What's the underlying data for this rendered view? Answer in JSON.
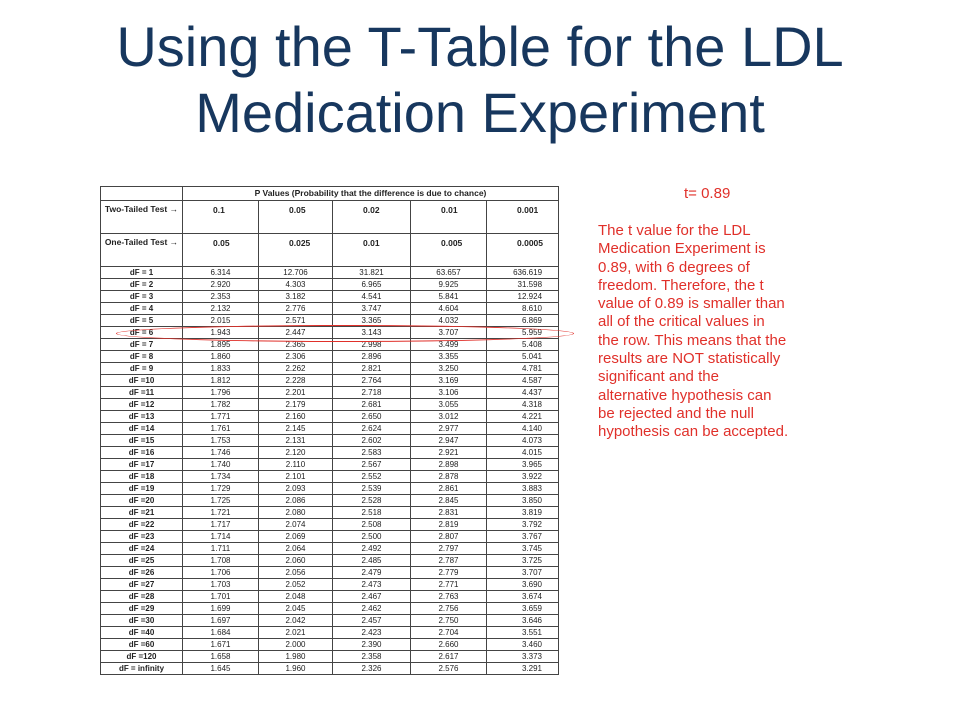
{
  "title": "Using the T-Table for the LDL Medication Experiment",
  "t_value_label": "t= 0.89",
  "explanation": "The t value for the LDL\nMedication Experiment is\n0.89, with 6 degrees of\nfreedom. Therefore, the t\nvalue of 0.89 is smaller than\nall of the critical values in\nthe row. This means that the\nresults are NOT statistically\nsignificant and the\nalternative hypothesis can\nbe rejected and the null\nhypothesis can be accepted.",
  "highlight_color": "#e0302a",
  "title_color": "#17375e",
  "table": {
    "p_values_header": "P Values (Probability that the difference is due to chance)",
    "two_tailed_label": "Two-Tailed Test →",
    "one_tailed_label": "One-Tailed Test →",
    "two_tailed": [
      "0.1",
      "0.05",
      "0.02",
      "0.01",
      "0.001"
    ],
    "one_tailed": [
      "0.05",
      "0.025",
      "0.01",
      "0.005",
      "0.0005"
    ],
    "highlighted_row": "dF = 6",
    "rows": [
      {
        "df": "dF = 1",
        "values": [
          "6.314",
          "12.706",
          "31.821",
          "63.657",
          "636.619"
        ]
      },
      {
        "df": "dF = 2",
        "values": [
          "2.920",
          "4.303",
          "6.965",
          "9.925",
          "31.598"
        ]
      },
      {
        "df": "dF = 3",
        "values": [
          "2.353",
          "3.182",
          "4.541",
          "5.841",
          "12.924"
        ]
      },
      {
        "df": "dF = 4",
        "values": [
          "2.132",
          "2.776",
          "3.747",
          "4.604",
          "8.610"
        ]
      },
      {
        "df": "dF = 5",
        "values": [
          "2.015",
          "2.571",
          "3.365",
          "4.032",
          "6.869"
        ]
      },
      {
        "df": "dF = 6",
        "values": [
          "1.943",
          "2.447",
          "3.143",
          "3.707",
          "5.959"
        ]
      },
      {
        "df": "dF = 7",
        "values": [
          "1.895",
          "2.365",
          "2.998",
          "3.499",
          "5.408"
        ]
      },
      {
        "df": "dF = 8",
        "values": [
          "1.860",
          "2.306",
          "2.896",
          "3.355",
          "5.041"
        ]
      },
      {
        "df": "dF = 9",
        "values": [
          "1.833",
          "2.262",
          "2.821",
          "3.250",
          "4.781"
        ]
      },
      {
        "df": "dF =10",
        "values": [
          "1.812",
          "2.228",
          "2.764",
          "3.169",
          "4.587"
        ]
      },
      {
        "df": "dF =11",
        "values": [
          "1.796",
          "2.201",
          "2.718",
          "3.106",
          "4.437"
        ]
      },
      {
        "df": "dF =12",
        "values": [
          "1.782",
          "2.179",
          "2.681",
          "3.055",
          "4.318"
        ]
      },
      {
        "df": "dF =13",
        "values": [
          "1.771",
          "2.160",
          "2.650",
          "3.012",
          "4.221"
        ]
      },
      {
        "df": "dF =14",
        "values": [
          "1.761",
          "2.145",
          "2.624",
          "2.977",
          "4.140"
        ]
      },
      {
        "df": "dF =15",
        "values": [
          "1.753",
          "2.131",
          "2.602",
          "2.947",
          "4.073"
        ]
      },
      {
        "df": "dF =16",
        "values": [
          "1.746",
          "2.120",
          "2.583",
          "2.921",
          "4.015"
        ]
      },
      {
        "df": "dF =17",
        "values": [
          "1.740",
          "2.110",
          "2.567",
          "2.898",
          "3.965"
        ]
      },
      {
        "df": "dF =18",
        "values": [
          "1.734",
          "2.101",
          "2.552",
          "2.878",
          "3.922"
        ]
      },
      {
        "df": "dF =19",
        "values": [
          "1.729",
          "2.093",
          "2.539",
          "2.861",
          "3.883"
        ]
      },
      {
        "df": "dF =20",
        "values": [
          "1.725",
          "2.086",
          "2.528",
          "2.845",
          "3.850"
        ]
      },
      {
        "df": "dF =21",
        "values": [
          "1.721",
          "2.080",
          "2.518",
          "2.831",
          "3.819"
        ]
      },
      {
        "df": "dF =22",
        "values": [
          "1.717",
          "2.074",
          "2.508",
          "2.819",
          "3.792"
        ]
      },
      {
        "df": "dF =23",
        "values": [
          "1.714",
          "2.069",
          "2.500",
          "2.807",
          "3.767"
        ]
      },
      {
        "df": "dF =24",
        "values": [
          "1.711",
          "2.064",
          "2.492",
          "2.797",
          "3.745"
        ]
      },
      {
        "df": "dF =25",
        "values": [
          "1.708",
          "2.060",
          "2.485",
          "2.787",
          "3.725"
        ]
      },
      {
        "df": "dF =26",
        "values": [
          "1.706",
          "2.056",
          "2.479",
          "2.779",
          "3.707"
        ]
      },
      {
        "df": "dF =27",
        "values": [
          "1.703",
          "2.052",
          "2.473",
          "2.771",
          "3.690"
        ]
      },
      {
        "df": "dF =28",
        "values": [
          "1.701",
          "2.048",
          "2.467",
          "2.763",
          "3.674"
        ]
      },
      {
        "df": "dF =29",
        "values": [
          "1.699",
          "2.045",
          "2.462",
          "2.756",
          "3.659"
        ]
      },
      {
        "df": "dF =30",
        "values": [
          "1.697",
          "2.042",
          "2.457",
          "2.750",
          "3.646"
        ]
      },
      {
        "df": "dF =40",
        "values": [
          "1.684",
          "2.021",
          "2.423",
          "2.704",
          "3.551"
        ]
      },
      {
        "df": "dF =60",
        "values": [
          "1.671",
          "2.000",
          "2.390",
          "2.660",
          "3.460"
        ]
      },
      {
        "df": "dF =120",
        "values": [
          "1.658",
          "1.980",
          "2.358",
          "2.617",
          "3.373"
        ]
      },
      {
        "df": "dF = infinity",
        "values": [
          "1.645",
          "1.960",
          "2.326",
          "2.576",
          "3.291"
        ]
      }
    ]
  }
}
